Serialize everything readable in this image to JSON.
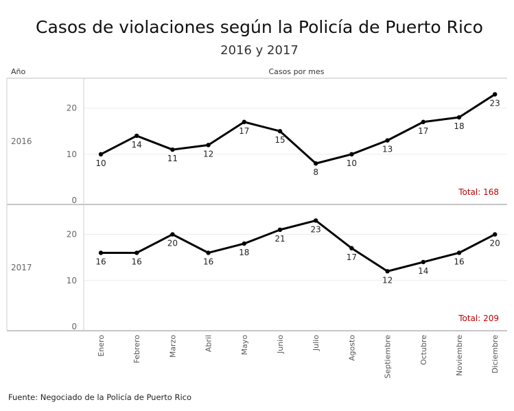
{
  "header": {
    "title": "Casos de violaciones según la Policía de Puerto Rico",
    "subtitle": "2016 y 2017",
    "row_header": "Año",
    "col_header": "Casos por mes"
  },
  "footer": {
    "source": "Fuente: Negociado de la Policía de Puerto Rico"
  },
  "chart_data": {
    "type": "line",
    "title": "Casos de violaciones según la Policía de Puerto Rico",
    "subtitle": "2016 y 2017",
    "xlabel": "",
    "ylabel": "Casos por mes",
    "categories": [
      "Enero",
      "Febrero",
      "Marzo",
      "Abril",
      "Mayo",
      "Junio",
      "Julio",
      "Agosto",
      "Septiembre",
      "Octubre",
      "Noviembre",
      "Diciembre"
    ],
    "ylim": [
      0,
      25
    ],
    "yticks": [
      0,
      10,
      20
    ],
    "grid": true,
    "line_color": "#000000",
    "total_color": "#c00000",
    "series": [
      {
        "name": "2016",
        "values": [
          10,
          14,
          11,
          12,
          17,
          15,
          8,
          10,
          13,
          17,
          18,
          23
        ],
        "total_label": "Total: 168"
      },
      {
        "name": "2017",
        "values": [
          16,
          16,
          20,
          16,
          18,
          21,
          23,
          17,
          12,
          14,
          16,
          20
        ],
        "total_label": "Total: 209"
      }
    ]
  }
}
